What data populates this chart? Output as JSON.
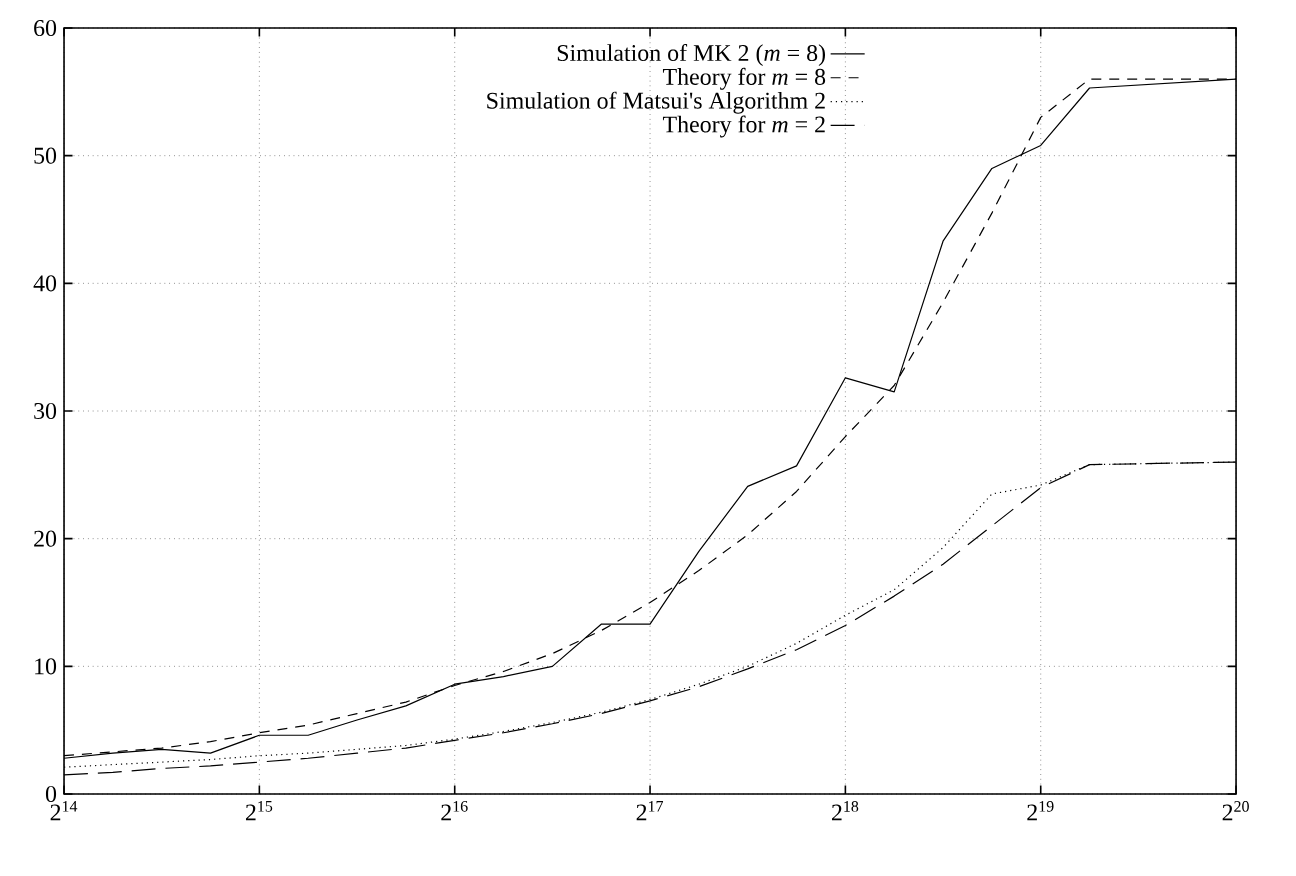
{
  "chart_data": {
    "type": "line",
    "x": [
      16384,
      19484,
      23170,
      27554,
      32768,
      38968,
      46341,
      55109,
      65536,
      77936,
      92682,
      110218,
      131072,
      155872,
      185364,
      220436,
      262144,
      311744,
      370728,
      440872,
      524288,
      623487,
      1048576
    ],
    "series": [
      {
        "name": "Simulation of MK 2 (*m* = 8)",
        "color": "#000000",
        "line_style": "solid",
        "values": [
          2.8,
          3.2,
          3.5,
          3.2,
          4.6,
          4.6,
          5.8,
          6.9,
          8.6,
          9.2,
          10,
          13.3,
          13.3,
          19,
          24.1,
          25.7,
          32.6,
          31.5,
          43.3,
          49,
          50.8,
          55.3,
          56
        ]
      },
      {
        "name": "Theory for *m* = 8",
        "color": "#000000",
        "line_style": "dashed",
        "values": [
          3.0,
          3.3,
          3.6,
          4.1,
          4.8,
          5.4,
          6.3,
          7.2,
          8.5,
          9.6,
          11.0,
          12.8,
          15,
          17.5,
          20.3,
          23.7,
          28,
          32,
          38.5,
          45.5,
          53,
          56,
          56
        ]
      },
      {
        "name": "Simulation of Matsui's Algorithm 2",
        "color": "#000000",
        "line_style": "dotted",
        "values": [
          2.1,
          2.3,
          2.5,
          2.7,
          3.0,
          3.2,
          3.5,
          3.8,
          4.3,
          4.9,
          5.6,
          6.4,
          7.4,
          8.6,
          10,
          11.8,
          14,
          16,
          19.3,
          23.5,
          24.2,
          25.8,
          26
        ]
      },
      {
        "name": "Theory for *m* = 2",
        "color": "#000000",
        "line_style": "dashed",
        "values": [
          1.5,
          1.7,
          2.0,
          2.2,
          2.5,
          2.8,
          3.2,
          3.6,
          4.2,
          4.8,
          5.5,
          6.3,
          7.3,
          8.4,
          9.8,
          11.3,
          13.2,
          15.5,
          18,
          21,
          24,
          25.8,
          26
        ]
      }
    ],
    "log": "x",
    "xlim": [
      16384,
      1048576
    ],
    "xticks": [
      {
        "value": 16384,
        "label": "2$^{14}$"
      },
      {
        "value": 32768,
        "label": "2$^{15}$"
      },
      {
        "value": 65536,
        "label": "2$^{16}$"
      },
      {
        "value": 131072,
        "label": "2$^{17}$"
      },
      {
        "value": 262144,
        "label": "2$^{18}$"
      },
      {
        "value": 524288,
        "label": "2$^{19}$"
      },
      {
        "value": 1048576,
        "label": "2$^{20}$"
      }
    ],
    "ylim": [
      0,
      60
    ],
    "yticks": [
      0,
      10,
      20,
      30,
      40,
      50,
      60
    ],
    "grid": true,
    "legend": "top",
    "marker": "none"
  }
}
